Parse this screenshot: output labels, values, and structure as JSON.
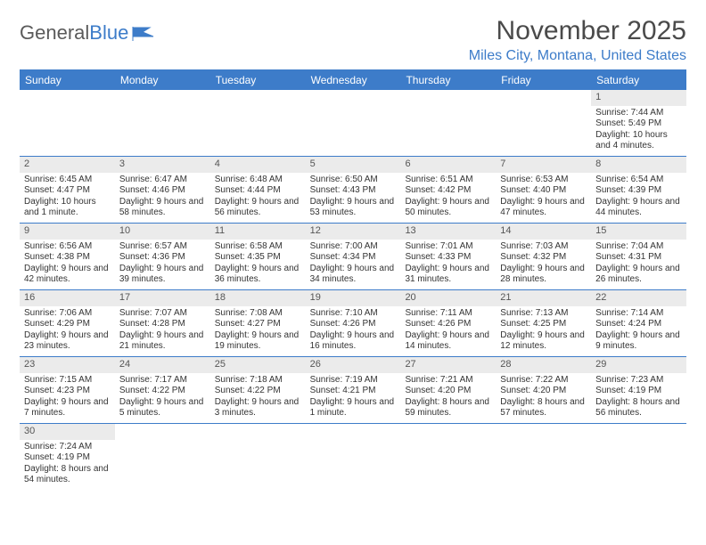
{
  "brand": {
    "part1": "General",
    "part2": "Blue"
  },
  "title": "November 2025",
  "location": "Miles City, Montana, United States",
  "colors": {
    "accent": "#3d7cc9",
    "header_bg": "#3d7cc9",
    "header_text": "#ffffff",
    "daynum_bg": "#ebebeb",
    "text": "#333333",
    "background": "#ffffff"
  },
  "weekdays": [
    "Sunday",
    "Monday",
    "Tuesday",
    "Wednesday",
    "Thursday",
    "Friday",
    "Saturday"
  ],
  "weeks": [
    [
      null,
      null,
      null,
      null,
      null,
      null,
      {
        "n": "1",
        "sr": "Sunrise: 7:44 AM",
        "ss": "Sunset: 5:49 PM",
        "dl": "Daylight: 10 hours and 4 minutes."
      }
    ],
    [
      {
        "n": "2",
        "sr": "Sunrise: 6:45 AM",
        "ss": "Sunset: 4:47 PM",
        "dl": "Daylight: 10 hours and 1 minute."
      },
      {
        "n": "3",
        "sr": "Sunrise: 6:47 AM",
        "ss": "Sunset: 4:46 PM",
        "dl": "Daylight: 9 hours and 58 minutes."
      },
      {
        "n": "4",
        "sr": "Sunrise: 6:48 AM",
        "ss": "Sunset: 4:44 PM",
        "dl": "Daylight: 9 hours and 56 minutes."
      },
      {
        "n": "5",
        "sr": "Sunrise: 6:50 AM",
        "ss": "Sunset: 4:43 PM",
        "dl": "Daylight: 9 hours and 53 minutes."
      },
      {
        "n": "6",
        "sr": "Sunrise: 6:51 AM",
        "ss": "Sunset: 4:42 PM",
        "dl": "Daylight: 9 hours and 50 minutes."
      },
      {
        "n": "7",
        "sr": "Sunrise: 6:53 AM",
        "ss": "Sunset: 4:40 PM",
        "dl": "Daylight: 9 hours and 47 minutes."
      },
      {
        "n": "8",
        "sr": "Sunrise: 6:54 AM",
        "ss": "Sunset: 4:39 PM",
        "dl": "Daylight: 9 hours and 44 minutes."
      }
    ],
    [
      {
        "n": "9",
        "sr": "Sunrise: 6:56 AM",
        "ss": "Sunset: 4:38 PM",
        "dl": "Daylight: 9 hours and 42 minutes."
      },
      {
        "n": "10",
        "sr": "Sunrise: 6:57 AM",
        "ss": "Sunset: 4:36 PM",
        "dl": "Daylight: 9 hours and 39 minutes."
      },
      {
        "n": "11",
        "sr": "Sunrise: 6:58 AM",
        "ss": "Sunset: 4:35 PM",
        "dl": "Daylight: 9 hours and 36 minutes."
      },
      {
        "n": "12",
        "sr": "Sunrise: 7:00 AM",
        "ss": "Sunset: 4:34 PM",
        "dl": "Daylight: 9 hours and 34 minutes."
      },
      {
        "n": "13",
        "sr": "Sunrise: 7:01 AM",
        "ss": "Sunset: 4:33 PM",
        "dl": "Daylight: 9 hours and 31 minutes."
      },
      {
        "n": "14",
        "sr": "Sunrise: 7:03 AM",
        "ss": "Sunset: 4:32 PM",
        "dl": "Daylight: 9 hours and 28 minutes."
      },
      {
        "n": "15",
        "sr": "Sunrise: 7:04 AM",
        "ss": "Sunset: 4:31 PM",
        "dl": "Daylight: 9 hours and 26 minutes."
      }
    ],
    [
      {
        "n": "16",
        "sr": "Sunrise: 7:06 AM",
        "ss": "Sunset: 4:29 PM",
        "dl": "Daylight: 9 hours and 23 minutes."
      },
      {
        "n": "17",
        "sr": "Sunrise: 7:07 AM",
        "ss": "Sunset: 4:28 PM",
        "dl": "Daylight: 9 hours and 21 minutes."
      },
      {
        "n": "18",
        "sr": "Sunrise: 7:08 AM",
        "ss": "Sunset: 4:27 PM",
        "dl": "Daylight: 9 hours and 19 minutes."
      },
      {
        "n": "19",
        "sr": "Sunrise: 7:10 AM",
        "ss": "Sunset: 4:26 PM",
        "dl": "Daylight: 9 hours and 16 minutes."
      },
      {
        "n": "20",
        "sr": "Sunrise: 7:11 AM",
        "ss": "Sunset: 4:26 PM",
        "dl": "Daylight: 9 hours and 14 minutes."
      },
      {
        "n": "21",
        "sr": "Sunrise: 7:13 AM",
        "ss": "Sunset: 4:25 PM",
        "dl": "Daylight: 9 hours and 12 minutes."
      },
      {
        "n": "22",
        "sr": "Sunrise: 7:14 AM",
        "ss": "Sunset: 4:24 PM",
        "dl": "Daylight: 9 hours and 9 minutes."
      }
    ],
    [
      {
        "n": "23",
        "sr": "Sunrise: 7:15 AM",
        "ss": "Sunset: 4:23 PM",
        "dl": "Daylight: 9 hours and 7 minutes."
      },
      {
        "n": "24",
        "sr": "Sunrise: 7:17 AM",
        "ss": "Sunset: 4:22 PM",
        "dl": "Daylight: 9 hours and 5 minutes."
      },
      {
        "n": "25",
        "sr": "Sunrise: 7:18 AM",
        "ss": "Sunset: 4:22 PM",
        "dl": "Daylight: 9 hours and 3 minutes."
      },
      {
        "n": "26",
        "sr": "Sunrise: 7:19 AM",
        "ss": "Sunset: 4:21 PM",
        "dl": "Daylight: 9 hours and 1 minute."
      },
      {
        "n": "27",
        "sr": "Sunrise: 7:21 AM",
        "ss": "Sunset: 4:20 PM",
        "dl": "Daylight: 8 hours and 59 minutes."
      },
      {
        "n": "28",
        "sr": "Sunrise: 7:22 AM",
        "ss": "Sunset: 4:20 PM",
        "dl": "Daylight: 8 hours and 57 minutes."
      },
      {
        "n": "29",
        "sr": "Sunrise: 7:23 AM",
        "ss": "Sunset: 4:19 PM",
        "dl": "Daylight: 8 hours and 56 minutes."
      }
    ],
    [
      {
        "n": "30",
        "sr": "Sunrise: 7:24 AM",
        "ss": "Sunset: 4:19 PM",
        "dl": "Daylight: 8 hours and 54 minutes."
      },
      null,
      null,
      null,
      null,
      null,
      null
    ]
  ]
}
